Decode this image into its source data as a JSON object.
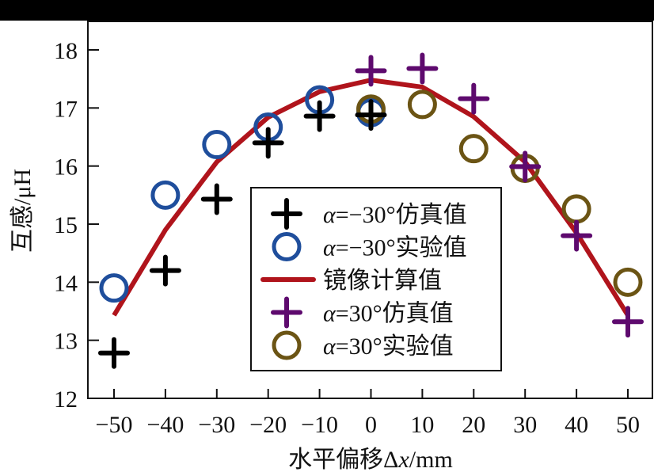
{
  "chart_data": {
    "type": "scatter",
    "title": "",
    "xlabel": "水平偏移Δx/mm",
    "ylabel": "互感/μH",
    "xlim": [
      -55,
      50.5
    ],
    "ylim": [
      12,
      18.5
    ],
    "x_ticks": [
      -50,
      -40,
      -30,
      -20,
      -10,
      0,
      10,
      20,
      30,
      40,
      50
    ],
    "x_tick_labels": [
      "−50",
      "−40",
      "−30",
      "−20",
      "−10",
      "0",
      "10",
      "20",
      "30",
      "40",
      "50"
    ],
    "y_ticks": [
      12,
      13,
      14,
      15,
      16,
      17,
      18
    ],
    "y_tick_labels": [
      "12",
      "13",
      "14",
      "15",
      "16",
      "17",
      "18"
    ],
    "grid": false,
    "legend_position": "center",
    "series": [
      {
        "name": "α=−30°仿真值",
        "marker": "plus",
        "color": "#000000",
        "x": [
          -50,
          -40,
          -30,
          -20,
          -10,
          0
        ],
        "y": [
          12.78,
          14.2,
          15.43,
          16.4,
          16.86,
          16.88
        ]
      },
      {
        "name": "α=−30°实验值",
        "marker": "circle",
        "color": "#1f4e9c",
        "x": [
          -50,
          -40,
          -30,
          -20,
          -10,
          0
        ],
        "y": [
          13.9,
          15.5,
          16.37,
          16.67,
          17.14,
          16.92
        ]
      },
      {
        "name": "镜像计算值",
        "marker": "line",
        "color": "#b0141c",
        "x": [
          -50,
          -40,
          -30,
          -20,
          -10,
          0,
          10,
          20,
          30,
          40,
          50
        ],
        "y": [
          13.43,
          14.9,
          16.07,
          16.84,
          17.28,
          17.48,
          17.36,
          16.85,
          16.07,
          14.85,
          13.43
        ]
      },
      {
        "name": "α=30°仿真值",
        "marker": "plus",
        "color": "#5e0a6e",
        "x": [
          0,
          10,
          20,
          30,
          40,
          50
        ],
        "y": [
          17.64,
          17.68,
          17.16,
          15.99,
          14.8,
          13.32
        ]
      },
      {
        "name": "α=30°实验值",
        "marker": "circle",
        "color": "#6b5414",
        "x": [
          0,
          10,
          20,
          30,
          40,
          50
        ],
        "y": [
          16.98,
          17.06,
          16.3,
          15.96,
          15.26,
          14.0
        ]
      }
    ],
    "legend": [
      {
        "prefix_italic": "α",
        "text": "=−30°仿真值",
        "marker": "plus",
        "color": "#000000"
      },
      {
        "prefix_italic": "α",
        "text": "=−30°实验值",
        "marker": "circle",
        "color": "#1f4e9c"
      },
      {
        "prefix_italic": "",
        "text": "镜像计算值",
        "marker": "line",
        "color": "#b0141c"
      },
      {
        "prefix_italic": "α",
        "text": "=30°仿真值",
        "marker": "plus",
        "color": "#5e0a6e"
      },
      {
        "prefix_italic": "α",
        "text": "=30°实验值",
        "marker": "circle",
        "color": "#6b5414"
      }
    ]
  },
  "axes": {
    "xlabel_main": "水平偏移Δ",
    "xlabel_var": "x",
    "xlabel_unit": "/mm",
    "ylabel": "互感/μH"
  }
}
